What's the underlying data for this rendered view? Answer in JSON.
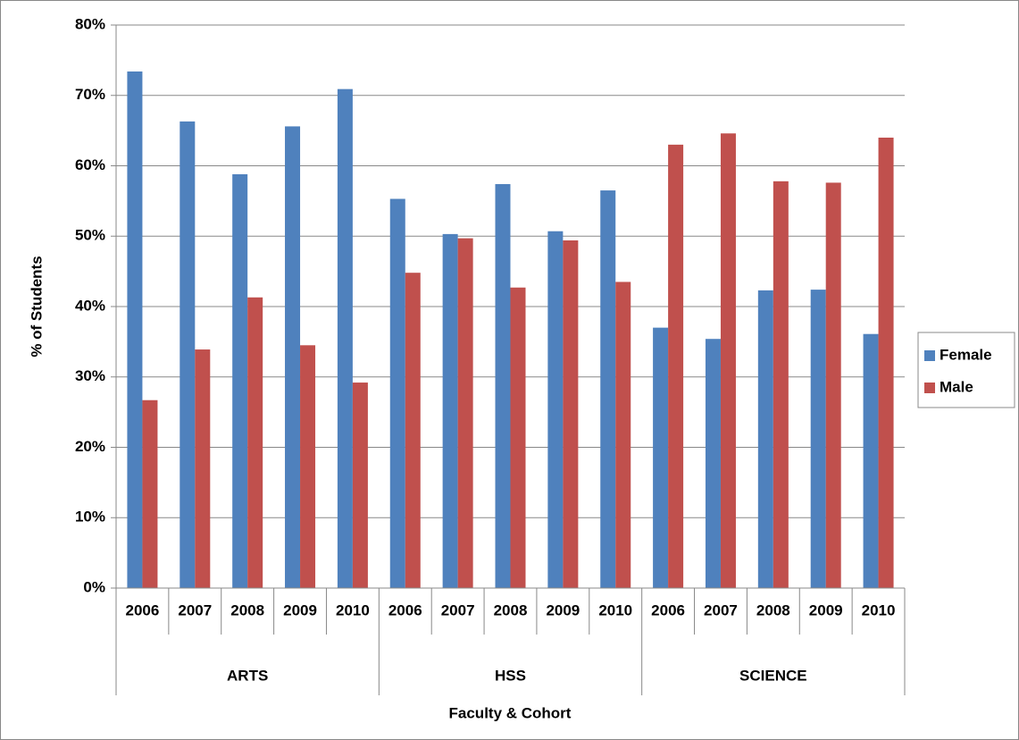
{
  "chart_data": {
    "type": "bar",
    "x_label": "Faculty & Cohort",
    "y_label": "% of Students",
    "groups": [
      {
        "name": "ARTS",
        "categories": [
          "2006",
          "2007",
          "2008",
          "2009",
          "2010"
        ]
      },
      {
        "name": "HSS",
        "categories": [
          "2006",
          "2007",
          "2008",
          "2009",
          "2010"
        ]
      },
      {
        "name": "SCIENCE",
        "categories": [
          "2006",
          "2007",
          "2008",
          "2009",
          "2010"
        ]
      }
    ],
    "series": [
      {
        "name": "Female",
        "color": "#4f81bd",
        "values": [
          73.4,
          66.3,
          58.8,
          65.6,
          70.9,
          55.3,
          50.3,
          57.4,
          50.7,
          56.5,
          37.0,
          35.4,
          42.3,
          42.4,
          36.1
        ]
      },
      {
        "name": "Male",
        "color": "#c0504d",
        "values": [
          26.7,
          33.9,
          41.3,
          34.5,
          29.2,
          44.8,
          49.7,
          42.7,
          49.4,
          43.5,
          63.0,
          64.6,
          57.8,
          57.6,
          64.0
        ]
      }
    ],
    "ylim": [
      0,
      80
    ],
    "yticks": [
      {
        "value": 0,
        "label": "0%"
      },
      {
        "value": 10,
        "label": "10%"
      },
      {
        "value": 20,
        "label": "20%"
      },
      {
        "value": 30,
        "label": "30%"
      },
      {
        "value": 40,
        "label": "40%"
      },
      {
        "value": 50,
        "label": "50%"
      },
      {
        "value": 60,
        "label": "60%"
      },
      {
        "value": 70,
        "label": "70%"
      },
      {
        "value": 80,
        "label": "80%"
      }
    ],
    "grid": true,
    "legend": "right"
  }
}
